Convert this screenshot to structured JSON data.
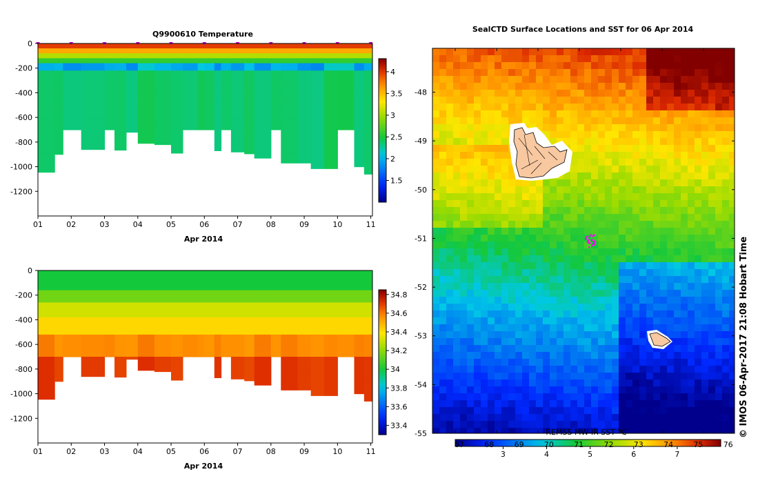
{
  "chart_data": [
    {
      "type": "heatmap",
      "title": "Q9900610  Temperature",
      "xlabel": "Apr 2014",
      "ylabel": "",
      "xticks": [
        "01",
        "02",
        "03",
        "04",
        "05",
        "06",
        "07",
        "08",
        "09",
        "10",
        "11"
      ],
      "xlim": [
        1,
        11.05
      ],
      "ylim": [
        -1400,
        0
      ],
      "yticks": [
        0,
        -200,
        -400,
        -600,
        -800,
        -1000,
        -1200
      ],
      "colorbar": {
        "min": 1.0,
        "max": 4.3,
        "ticks": [
          1.5,
          2,
          2.5,
          3,
          3.5,
          4
        ]
      },
      "profile_days": [
        1.0,
        1.5,
        1.75,
        2.3,
        3.0,
        3.3,
        3.65,
        4.0,
        4.5,
        5.0,
        5.35,
        5.8,
        6.0,
        6.3,
        6.5,
        6.8,
        7.2,
        7.5,
        8.0,
        8.3,
        8.8,
        9.2,
        9.6,
        10.0,
        10.5,
        10.8
      ],
      "profile_max_depths": [
        -1045,
        -900,
        -700,
        -860,
        -700,
        -865,
        -720,
        -810,
        -820,
        -890,
        -700,
        -700,
        -700,
        -870,
        -700,
        -880,
        -895,
        -930,
        -700,
        -970,
        -970,
        -1015,
        -1015,
        -700,
        -1000,
        -1060
      ],
      "markers": [
        "01",
        "02",
        "03",
        "04",
        "05",
        "06",
        "07",
        "08",
        "09",
        "10",
        "11"
      ]
    },
    {
      "type": "heatmap",
      "title": "",
      "xlabel": "Apr 2014",
      "ylabel": "",
      "xticks": [
        "01",
        "02",
        "03",
        "04",
        "05",
        "06",
        "07",
        "08",
        "09",
        "10",
        "11"
      ],
      "xlim": [
        1,
        11.05
      ],
      "ylim": [
        -1400,
        0
      ],
      "yticks": [
        0,
        -200,
        -400,
        -600,
        -800,
        -1000,
        -1200
      ],
      "colorbar": {
        "min": 33.3,
        "max": 34.85,
        "ticks": [
          33.4,
          33.6,
          33.8,
          34,
          34.2,
          34.4,
          34.6,
          34.8
        ]
      },
      "profile_days": [
        1.0,
        1.5,
        1.75,
        2.3,
        3.0,
        3.3,
        3.65,
        4.0,
        4.5,
        5.0,
        5.35,
        5.8,
        6.0,
        6.3,
        6.5,
        6.8,
        7.2,
        7.5,
        8.0,
        8.3,
        8.8,
        9.2,
        9.6,
        10.0,
        10.5,
        10.8
      ],
      "profile_max_depths": [
        -1045,
        -900,
        -700,
        -860,
        -700,
        -865,
        -720,
        -810,
        -820,
        -890,
        -700,
        -700,
        -700,
        -870,
        -700,
        -880,
        -895,
        -930,
        -700,
        -970,
        -970,
        -1015,
        -1015,
        -700,
        -1000,
        -1060
      ]
    },
    {
      "type": "heatmap",
      "title": "SealCTD Surface Locations and SST for 06 Apr 2014",
      "xlabel": "",
      "ylabel": "",
      "yticks": [
        "-48",
        "-49",
        "-50",
        "-51",
        "-52",
        "-53",
        "-54",
        "-55"
      ],
      "ylim": [
        -55,
        -47.1
      ],
      "colorbar_label": "REMSS MW-IR SST °C",
      "colorbar_ticks_lower": [
        "3",
        "4",
        "5",
        "6",
        "7"
      ],
      "colorbar_ticks_upper": [
        "67",
        "68",
        "69",
        "70",
        "71",
        "72",
        "73",
        "74",
        "75",
        "76"
      ],
      "colorbar_range": [
        1.9,
        8.0
      ],
      "seal_track": {
        "lat": [
          -50.95,
          -51.15
        ],
        "color": "#ff00ff"
      },
      "credit": "© IMOS 06-Apr-2017 21:08 Hobart Time"
    }
  ]
}
